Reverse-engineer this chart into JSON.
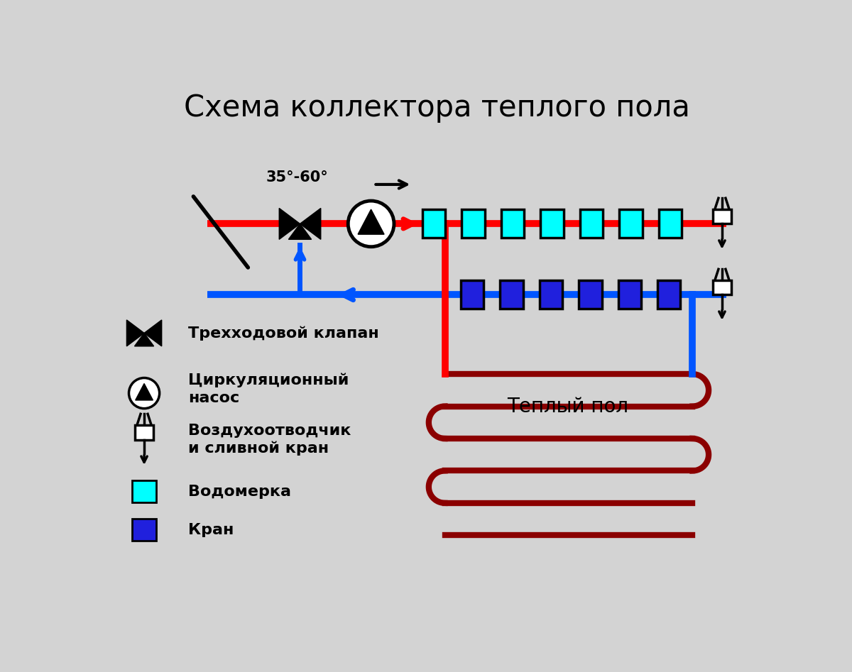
{
  "title": "Схема коллектора теплого пола",
  "bg_color": "#d3d3d3",
  "red_color": "#ff0000",
  "blue_color": "#0055ff",
  "dark_red_color": "#8b0000",
  "cyan_color": "#00ffff",
  "black_color": "#000000",
  "white_color": "#ffffff",
  "line_width": 7,
  "temp_label": "35°-60°",
  "floor_label": "Теплый пол",
  "num_cyan_segments": 7,
  "num_blue_segments": 6,
  "legend_valve_text": "Трехходовой клапан",
  "legend_pump_text": "Циркуляционный\nнасос",
  "legend_vent_text": "Воздухоотводчик\nи сливной кран",
  "legend_water_text": "Водомерка",
  "legend_valve2_text": "Кран"
}
